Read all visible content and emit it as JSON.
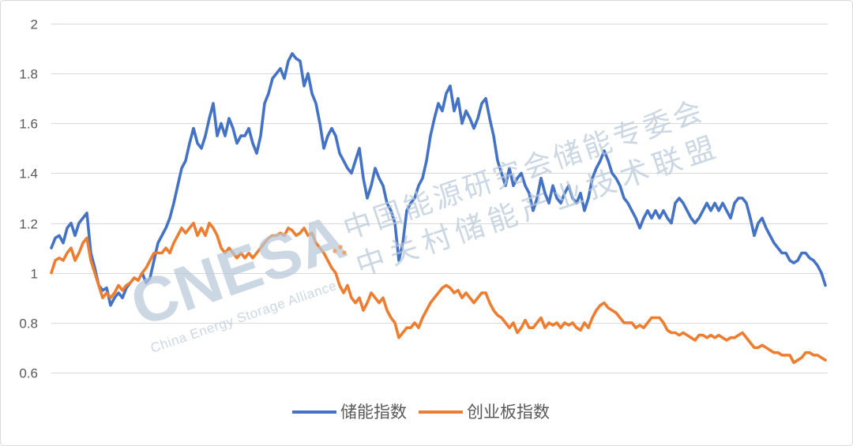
{
  "chart_data": {
    "type": "line",
    "ylim": [
      0.6,
      2
    ],
    "yticks": [
      0.6,
      0.8,
      1,
      1.2,
      1.4,
      1.6,
      1.8,
      2
    ],
    "ytick_labels": [
      "0.6",
      "0.8",
      "1",
      "1.2",
      "1.4",
      "1.6",
      "1.8",
      "2"
    ],
    "grid": true,
    "legend_position": "bottom",
    "series": [
      {
        "name": "储能指数",
        "color": "#4472C4",
        "values": [
          1.1,
          1.14,
          1.15,
          1.12,
          1.18,
          1.2,
          1.15,
          1.2,
          1.22,
          1.24,
          1.08,
          1.02,
          0.95,
          0.93,
          0.94,
          0.87,
          0.9,
          0.92,
          0.9,
          0.94,
          0.96,
          0.98,
          0.97,
          1.0,
          0.96,
          0.98,
          1.05,
          1.12,
          1.15,
          1.18,
          1.22,
          1.28,
          1.35,
          1.42,
          1.45,
          1.52,
          1.58,
          1.52,
          1.5,
          1.55,
          1.62,
          1.68,
          1.55,
          1.6,
          1.55,
          1.62,
          1.58,
          1.52,
          1.55,
          1.55,
          1.58,
          1.52,
          1.48,
          1.55,
          1.68,
          1.72,
          1.78,
          1.8,
          1.82,
          1.78,
          1.85,
          1.88,
          1.86,
          1.85,
          1.75,
          1.8,
          1.72,
          1.68,
          1.6,
          1.5,
          1.55,
          1.58,
          1.55,
          1.48,
          1.45,
          1.42,
          1.4,
          1.45,
          1.5,
          1.38,
          1.3,
          1.35,
          1.42,
          1.38,
          1.35,
          1.28,
          1.25,
          1.2,
          1.05,
          1.12,
          1.25,
          1.28,
          1.3,
          1.35,
          1.38,
          1.45,
          1.55,
          1.62,
          1.68,
          1.65,
          1.72,
          1.75,
          1.65,
          1.7,
          1.6,
          1.65,
          1.62,
          1.58,
          1.62,
          1.68,
          1.7,
          1.62,
          1.55,
          1.45,
          1.4,
          1.35,
          1.42,
          1.35,
          1.38,
          1.4,
          1.35,
          1.32,
          1.25,
          1.3,
          1.38,
          1.32,
          1.28,
          1.35,
          1.3,
          1.28,
          1.32,
          1.35,
          1.3,
          1.28,
          1.32,
          1.25,
          1.3,
          1.38,
          1.42,
          1.45,
          1.49,
          1.45,
          1.4,
          1.38,
          1.35,
          1.3,
          1.28,
          1.25,
          1.22,
          1.18,
          1.22,
          1.25,
          1.22,
          1.25,
          1.22,
          1.25,
          1.22,
          1.2,
          1.28,
          1.3,
          1.28,
          1.25,
          1.22,
          1.2,
          1.22,
          1.25,
          1.28,
          1.25,
          1.28,
          1.25,
          1.28,
          1.25,
          1.22,
          1.28,
          1.3,
          1.3,
          1.28,
          1.22,
          1.15,
          1.2,
          1.22,
          1.18,
          1.15,
          1.12,
          1.1,
          1.08,
          1.08,
          1.05,
          1.04,
          1.05,
          1.08,
          1.08,
          1.06,
          1.05,
          1.03,
          1.0,
          0.95
        ]
      },
      {
        "name": "创业板指数",
        "color": "#ED7D31",
        "values": [
          1.0,
          1.05,
          1.06,
          1.05,
          1.08,
          1.1,
          1.05,
          1.08,
          1.12,
          1.14,
          1.05,
          1.0,
          0.95,
          0.9,
          0.92,
          0.9,
          0.92,
          0.95,
          0.93,
          0.95,
          0.96,
          0.98,
          0.97,
          1.0,
          1.02,
          1.05,
          1.08,
          1.08,
          1.08,
          1.1,
          1.08,
          1.12,
          1.15,
          1.18,
          1.16,
          1.18,
          1.2,
          1.15,
          1.18,
          1.15,
          1.2,
          1.18,
          1.15,
          1.1,
          1.08,
          1.1,
          1.08,
          1.06,
          1.08,
          1.06,
          1.08,
          1.06,
          1.08,
          1.1,
          1.12,
          1.14,
          1.15,
          1.15,
          1.16,
          1.15,
          1.18,
          1.17,
          1.15,
          1.16,
          1.18,
          1.15,
          1.16,
          1.12,
          1.1,
          1.08,
          1.05,
          1.02,
          1.0,
          0.95,
          0.92,
          0.95,
          0.9,
          0.88,
          0.9,
          0.85,
          0.88,
          0.92,
          0.9,
          0.88,
          0.9,
          0.85,
          0.82,
          0.8,
          0.74,
          0.76,
          0.78,
          0.78,
          0.8,
          0.78,
          0.82,
          0.85,
          0.88,
          0.9,
          0.92,
          0.94,
          0.95,
          0.94,
          0.92,
          0.93,
          0.9,
          0.92,
          0.9,
          0.88,
          0.9,
          0.92,
          0.92,
          0.88,
          0.85,
          0.83,
          0.82,
          0.8,
          0.78,
          0.8,
          0.76,
          0.78,
          0.81,
          0.78,
          0.78,
          0.8,
          0.82,
          0.78,
          0.8,
          0.79,
          0.8,
          0.78,
          0.8,
          0.79,
          0.8,
          0.78,
          0.77,
          0.8,
          0.78,
          0.82,
          0.85,
          0.87,
          0.88,
          0.86,
          0.85,
          0.84,
          0.82,
          0.8,
          0.8,
          0.8,
          0.78,
          0.79,
          0.78,
          0.8,
          0.82,
          0.82,
          0.82,
          0.8,
          0.77,
          0.76,
          0.76,
          0.75,
          0.76,
          0.75,
          0.74,
          0.73,
          0.75,
          0.75,
          0.74,
          0.75,
          0.74,
          0.75,
          0.74,
          0.73,
          0.74,
          0.74,
          0.75,
          0.76,
          0.74,
          0.72,
          0.7,
          0.7,
          0.71,
          0.7,
          0.69,
          0.68,
          0.68,
          0.67,
          0.67,
          0.67,
          0.64,
          0.65,
          0.66,
          0.68,
          0.68,
          0.67,
          0.67,
          0.66,
          0.65
        ]
      }
    ]
  },
  "watermark": {
    "logo_text": "CNESA",
    "logo_subtitle": "China Energy Storage Alliance",
    "line1": "中国能源研究会储能专委会",
    "line2": "中关村储能产业技术联盟",
    "color": "#b7c8d8",
    "accent_color": "#ED7D31"
  }
}
